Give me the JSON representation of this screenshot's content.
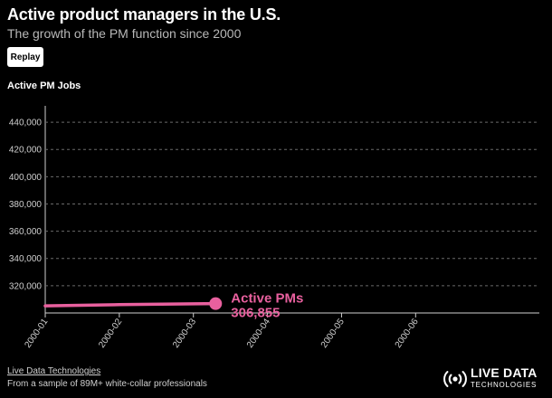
{
  "header": {
    "title": "Active product managers in the U.S.",
    "subtitle": "The growth of the PM function since 2000"
  },
  "controls": {
    "replay_label": "Replay"
  },
  "chart_data": {
    "type": "line",
    "ylabel": "Active PM Jobs",
    "ylim": [
      300000,
      452000
    ],
    "yticks": [
      320000,
      340000,
      360000,
      380000,
      400000,
      420000,
      440000
    ],
    "ytick_labels": [
      "320,000",
      "340,000",
      "360,000",
      "380,000",
      "400,000",
      "420,000",
      "440,000"
    ],
    "xlim": [
      0,
      6.67
    ],
    "xticks": [
      0,
      1,
      2,
      3,
      4,
      5
    ],
    "xtick_labels": [
      "2000-01",
      "2000-02",
      "2000-03",
      "2000-04",
      "2000-05",
      "2000-06"
    ],
    "grid": "horizontal-dashed",
    "series": [
      {
        "name": "Active PMs",
        "color": "#e8609e",
        "x": [
          0,
          1,
          2,
          2.3
        ],
        "y": [
          305200,
          306100,
          306700,
          306855
        ],
        "end_label_value": "306,855"
      }
    ]
  },
  "footer": {
    "source_label": "Live Data Technologies",
    "note": "From a sample of 89M+ white-collar professionals"
  },
  "logo": {
    "line1": "LIVE DATA",
    "line2": "TECHNOLOGIES",
    "icon": "broadcast-icon"
  }
}
